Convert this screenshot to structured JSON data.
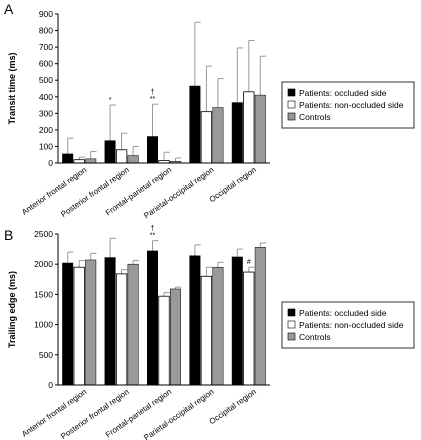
{
  "colors": {
    "occluded": "#000000",
    "non_occluded": "#ffffff",
    "controls": "#999999",
    "error_bar": "#999999"
  },
  "chart_data": [
    {
      "panel": "A",
      "type": "bar",
      "ylabel": "Transit time (ms)",
      "ylim": [
        0,
        900
      ],
      "yticks": [
        0,
        100,
        200,
        300,
        400,
        500,
        600,
        700,
        800,
        900
      ],
      "categories": [
        "Anterior frontal region",
        "Posterior frontal region",
        "Frontal-parietal region",
        "Parietal-occipital region",
        "Occipital region"
      ],
      "series": [
        {
          "name": "Patients: occluded side",
          "values": [
            55,
            135,
            160,
            465,
            365
          ],
          "errors": [
            95,
            215,
            195,
            385,
            330
          ]
        },
        {
          "name": "Patients: non-occluded side",
          "values": [
            20,
            80,
            15,
            310,
            430
          ],
          "errors": [
            15,
            100,
            50,
            275,
            310
          ]
        },
        {
          "name": "Controls",
          "values": [
            25,
            45,
            10,
            335,
            410
          ],
          "errors": [
            45,
            55,
            20,
            175,
            235
          ]
        }
      ],
      "annotations": [
        {
          "category": 1,
          "series": 0,
          "marks": [
            "*"
          ]
        },
        {
          "category": 2,
          "series": 0,
          "marks": [
            "†",
            "**"
          ]
        }
      ],
      "legend": "right"
    },
    {
      "panel": "B",
      "type": "bar",
      "ylabel": "Trailing edge (ms)",
      "ylim": [
        0,
        2500
      ],
      "yticks": [
        0,
        500,
        1000,
        1500,
        2000,
        2500
      ],
      "categories": [
        "Anterior frontal region",
        "Posterior frontal region",
        "Frontal-parietal region",
        "Parietal-occipital region",
        "Occipital region"
      ],
      "series": [
        {
          "name": "Patients: occluded side",
          "values": [
            2020,
            2110,
            2220,
            2140,
            2120
          ],
          "errors": [
            180,
            320,
            170,
            180,
            130
          ]
        },
        {
          "name": "Patients: non-occluded side",
          "values": [
            1950,
            1840,
            1470,
            1800,
            1870
          ],
          "errors": [
            110,
            70,
            60,
            150,
            80
          ]
        },
        {
          "name": "Controls",
          "values": [
            2070,
            2000,
            1590,
            1950,
            2280
          ],
          "errors": [
            110,
            60,
            30,
            80,
            70
          ]
        }
      ],
      "annotations": [
        {
          "category": 2,
          "series": 0,
          "marks": [
            "†",
            "**"
          ]
        },
        {
          "category": 4,
          "series": 1,
          "marks": [
            "#"
          ]
        }
      ],
      "legend": "right"
    }
  ]
}
